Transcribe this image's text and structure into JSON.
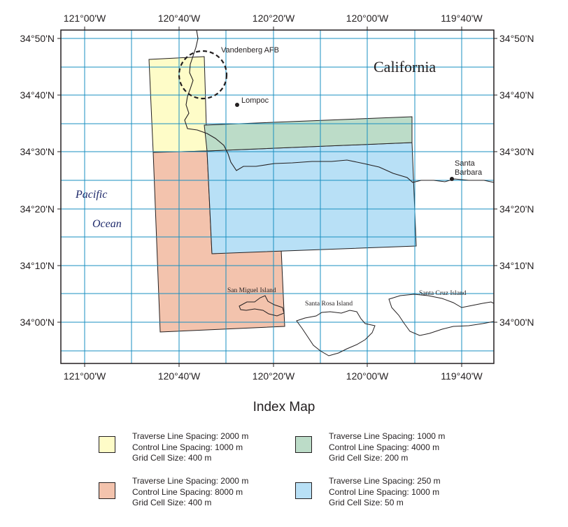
{
  "map": {
    "lon_labels": [
      "121°00'W",
      "120°40'W",
      "120°20'W",
      "120°00'W",
      "119°40'W"
    ],
    "lat_labels": [
      "34°50'N",
      "34°40'N",
      "34°30'N",
      "34°20'N",
      "34°10'N",
      "34°00'N"
    ],
    "places": {
      "california": "California",
      "vandenberg": "Vandenberg AFB",
      "lompoc": "Lompoc",
      "santa_barbara_line1": "Santa",
      "santa_barbara_line2": "Barbara",
      "pacific": "Pacific",
      "ocean": "Ocean",
      "san_miguel": "San Miguel Island",
      "santa_rosa": "Santa Rosa Island",
      "santa_cruz": "Santa Cruz Island"
    },
    "colors": {
      "grid": "#1a8fc0",
      "yellow": "#fefcc8",
      "green": "#bcdcc8",
      "salmon": "#f3c3ad",
      "blue": "#b8e0f6",
      "water_label": "#1f2a6b"
    }
  },
  "title": "Index Map",
  "legend": [
    {
      "color": "#fefcc8",
      "lines": [
        "Traverse Line Spacing: 2000 m",
        "Control Line Spacing: 1000 m",
        "Grid Cell Size: 400 m"
      ]
    },
    {
      "color": "#bcdcc8",
      "lines": [
        "Traverse Line Spacing: 1000 m",
        "Control Line Spacing: 4000 m",
        "Grid Cell Size: 200 m"
      ]
    },
    {
      "color": "#f3c3ad",
      "lines": [
        "Traverse Line Spacing: 2000 m",
        "Control Line Spacing: 8000 m",
        "Grid Cell Size: 400 m"
      ]
    },
    {
      "color": "#b8e0f6",
      "lines": [
        "Traverse Line Spacing: 250 m",
        "Control Line Spacing: 1000 m",
        "Grid Cell Size: 50 m"
      ]
    }
  ]
}
